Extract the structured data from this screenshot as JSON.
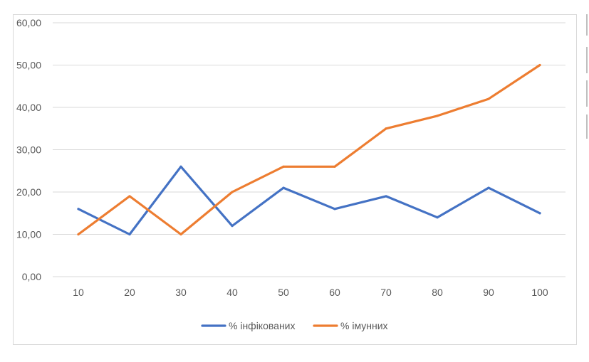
{
  "chart_data": {
    "type": "line",
    "title": "",
    "xlabel": "",
    "ylabel": "",
    "categories": [
      "10",
      "20",
      "30",
      "40",
      "50",
      "60",
      "70",
      "80",
      "90",
      "100"
    ],
    "y_ticks": [
      "0,00",
      "10,00",
      "20,00",
      "30,00",
      "40,00",
      "50,00",
      "60,00"
    ],
    "ylim": [
      0,
      60
    ],
    "grid": true,
    "legend_position": "bottom",
    "series": [
      {
        "name": "% інфікованих",
        "color": "#4472c4",
        "values": [
          16,
          10,
          26,
          12,
          21,
          16,
          19,
          14,
          21,
          15
        ]
      },
      {
        "name": "% імунних",
        "color": "#ed7d31",
        "values": [
          10,
          19,
          10,
          20,
          26,
          26,
          35,
          38,
          42,
          50
        ]
      }
    ]
  }
}
